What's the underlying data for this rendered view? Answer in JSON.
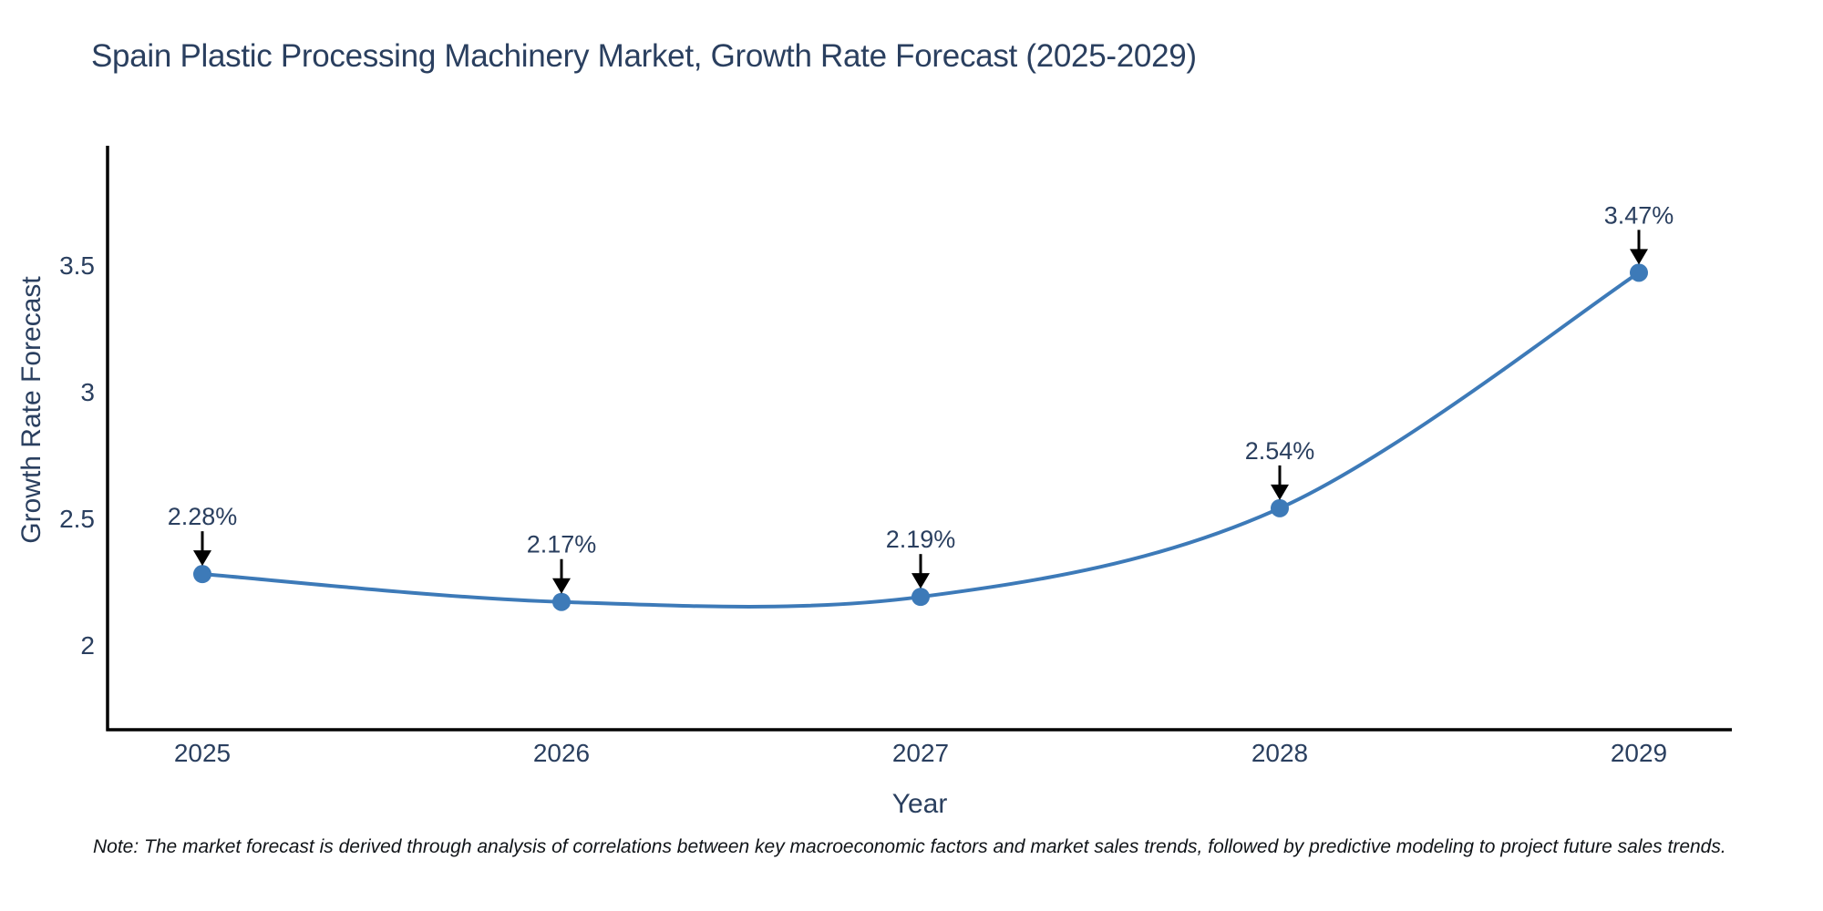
{
  "title": "Spain Plastic Processing Machinery Market, Growth Rate Forecast (2025-2029)",
  "note": "Note: The market forecast is derived through analysis of correlations between key macroeconomic factors and market sales trends, followed by predictive modeling to project future sales trends.",
  "chart_data": {
    "type": "line",
    "line_shape": "spline",
    "x": [
      2025,
      2026,
      2027,
      2028,
      2029
    ],
    "values": [
      2.28,
      2.17,
      2.19,
      2.54,
      3.47
    ],
    "point_labels": [
      "2.28%",
      "2.17%",
      "2.19%",
      "2.54%",
      "3.47%"
    ],
    "xlabel": "Year",
    "ylabel": "Growth Rate Forecast",
    "yticks": [
      2,
      2.5,
      3,
      3.5
    ],
    "ylim": [
      1.67,
      3.97
    ],
    "xlim": [
      2024.74,
      2029.26
    ],
    "grid": false,
    "legend": "none",
    "line_color": "#3d7ab8",
    "marker_color": "#3d7ab8",
    "axis_color": "#000000",
    "text_color": "#2a3f5f",
    "annotation_arrow_color": "#000000"
  }
}
